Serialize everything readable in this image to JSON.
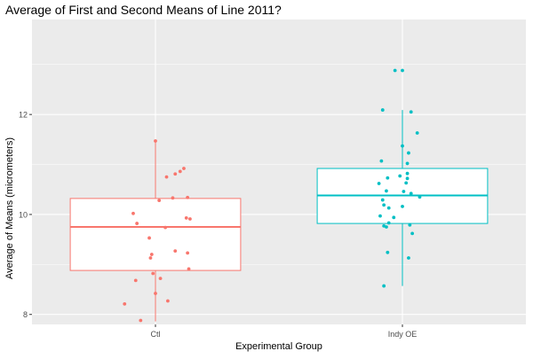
{
  "chart_data": {
    "type": "box",
    "title": "Average of First and Second Means of Line 2011?",
    "xlabel": "Experimental Group",
    "ylabel": "Average of Means (micrometers)",
    "categories": [
      "Ctl",
      "Indy OE"
    ],
    "ylim": [
      7.8,
      13.9
    ],
    "yticks": [
      8,
      10,
      12
    ],
    "grid": true,
    "legend": "none",
    "colors": {
      "Ctl": "#F8766D",
      "Indy OE": "#00BFC4",
      "panel": "#EBEBEB",
      "grid": "#FFFFFF",
      "axis_text": "#4D4D4D"
    },
    "boxes": [
      {
        "group": "Ctl",
        "whisker_low": 7.86,
        "q1": 8.88,
        "median": 9.75,
        "q3": 10.32,
        "whisker_high": 11.47
      },
      {
        "group": "Indy OE",
        "whisker_low": 8.57,
        "q1": 9.82,
        "median": 10.38,
        "q3": 10.92,
        "whisker_high": 12.09
      }
    ],
    "points": [
      {
        "group": "Ctl",
        "jitter": 0.0,
        "y": 11.47
      },
      {
        "group": "Ctl",
        "jitter": 0.23,
        "y": 10.92
      },
      {
        "group": "Ctl",
        "jitter": 0.2,
        "y": 10.86
      },
      {
        "group": "Ctl",
        "jitter": 0.16,
        "y": 10.81
      },
      {
        "group": "Ctl",
        "jitter": 0.09,
        "y": 10.75
      },
      {
        "group": "Ctl",
        "jitter": 0.26,
        "y": 10.34
      },
      {
        "group": "Ctl",
        "jitter": 0.14,
        "y": 10.33
      },
      {
        "group": "Ctl",
        "jitter": 0.03,
        "y": 10.28
      },
      {
        "group": "Ctl",
        "jitter": -0.18,
        "y": 10.02
      },
      {
        "group": "Ctl",
        "jitter": 0.25,
        "y": 9.93
      },
      {
        "group": "Ctl",
        "jitter": 0.28,
        "y": 9.91
      },
      {
        "group": "Ctl",
        "jitter": -0.15,
        "y": 9.82
      },
      {
        "group": "Ctl",
        "jitter": 0.08,
        "y": 9.74
      },
      {
        "group": "Ctl",
        "jitter": -0.05,
        "y": 9.53
      },
      {
        "group": "Ctl",
        "jitter": 0.16,
        "y": 9.27
      },
      {
        "group": "Ctl",
        "jitter": 0.26,
        "y": 9.23
      },
      {
        "group": "Ctl",
        "jitter": -0.03,
        "y": 9.2
      },
      {
        "group": "Ctl",
        "jitter": -0.04,
        "y": 9.13
      },
      {
        "group": "Ctl",
        "jitter": 0.27,
        "y": 8.91
      },
      {
        "group": "Ctl",
        "jitter": -0.02,
        "y": 8.82
      },
      {
        "group": "Ctl",
        "jitter": 0.04,
        "y": 8.72
      },
      {
        "group": "Ctl",
        "jitter": -0.16,
        "y": 8.68
      },
      {
        "group": "Ctl",
        "jitter": 0.0,
        "y": 8.42
      },
      {
        "group": "Ctl",
        "jitter": 0.1,
        "y": 8.27
      },
      {
        "group": "Ctl",
        "jitter": -0.25,
        "y": 8.21
      },
      {
        "group": "Ctl",
        "jitter": -0.12,
        "y": 7.88
      },
      {
        "group": "Indy OE",
        "jitter": -0.06,
        "y": 12.88
      },
      {
        "group": "Indy OE",
        "jitter": 0.0,
        "y": 12.88
      },
      {
        "group": "Indy OE",
        "jitter": -0.16,
        "y": 12.09
      },
      {
        "group": "Indy OE",
        "jitter": 0.07,
        "y": 12.05
      },
      {
        "group": "Indy OE",
        "jitter": 0.12,
        "y": 11.63
      },
      {
        "group": "Indy OE",
        "jitter": 0.0,
        "y": 11.37
      },
      {
        "group": "Indy OE",
        "jitter": 0.05,
        "y": 11.23
      },
      {
        "group": "Indy OE",
        "jitter": -0.17,
        "y": 11.07
      },
      {
        "group": "Indy OE",
        "jitter": 0.04,
        "y": 11.02
      },
      {
        "group": "Indy OE",
        "jitter": 0.04,
        "y": 10.82
      },
      {
        "group": "Indy OE",
        "jitter": -0.02,
        "y": 10.77
      },
      {
        "group": "Indy OE",
        "jitter": 0.04,
        "y": 10.72
      },
      {
        "group": "Indy OE",
        "jitter": -0.12,
        "y": 10.73
      },
      {
        "group": "Indy OE",
        "jitter": -0.19,
        "y": 10.62
      },
      {
        "group": "Indy OE",
        "jitter": 0.03,
        "y": 10.63
      },
      {
        "group": "Indy OE",
        "jitter": -0.13,
        "y": 10.47
      },
      {
        "group": "Indy OE",
        "jitter": 0.01,
        "y": 10.46
      },
      {
        "group": "Indy OE",
        "jitter": 0.07,
        "y": 10.42
      },
      {
        "group": "Indy OE",
        "jitter": 0.14,
        "y": 10.35
      },
      {
        "group": "Indy OE",
        "jitter": -0.16,
        "y": 10.29
      },
      {
        "group": "Indy OE",
        "jitter": -0.15,
        "y": 10.19
      },
      {
        "group": "Indy OE",
        "jitter": -0.11,
        "y": 10.13
      },
      {
        "group": "Indy OE",
        "jitter": 0.0,
        "y": 10.16
      },
      {
        "group": "Indy OE",
        "jitter": -0.18,
        "y": 9.97
      },
      {
        "group": "Indy OE",
        "jitter": -0.07,
        "y": 9.94
      },
      {
        "group": "Indy OE",
        "jitter": -0.11,
        "y": 9.83
      },
      {
        "group": "Indy OE",
        "jitter": -0.15,
        "y": 9.77
      },
      {
        "group": "Indy OE",
        "jitter": 0.06,
        "y": 9.79
      },
      {
        "group": "Indy OE",
        "jitter": -0.13,
        "y": 9.75
      },
      {
        "group": "Indy OE",
        "jitter": 0.08,
        "y": 9.62
      },
      {
        "group": "Indy OE",
        "jitter": -0.12,
        "y": 9.24
      },
      {
        "group": "Indy OE",
        "jitter": 0.05,
        "y": 9.13
      },
      {
        "group": "Indy OE",
        "jitter": -0.15,
        "y": 8.57
      }
    ]
  }
}
